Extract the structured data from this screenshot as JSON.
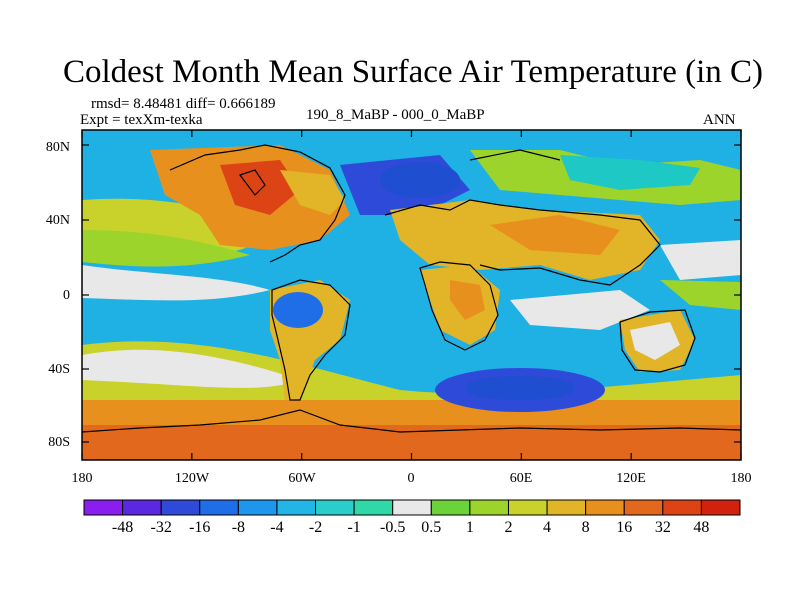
{
  "title": "Coldest Month Mean Surface Air Temperature (in C)",
  "stats": "rmsd= 8.48481 diff= 0.666189",
  "experiment": "Expt = texXm-texka",
  "period": "190_8_MaBP - 000_0_MaBP",
  "season": "ANN",
  "lat_labels": [
    "80N",
    "40N",
    "0",
    "40S",
    "80S"
  ],
  "lon_labels": [
    "180",
    "120W",
    "60W",
    "0",
    "60E",
    "120E",
    "180"
  ],
  "colorbar": {
    "labels": [
      "-48",
      "-32",
      "-16",
      "-8",
      "-4",
      "-2",
      "-1",
      "-0.5",
      "0.5",
      "1",
      "2",
      "4",
      "8",
      "16",
      "32",
      "48"
    ],
    "colors": [
      "#8a1ef0",
      "#5a28e0",
      "#2e4ad8",
      "#1f6ee8",
      "#1e96ec",
      "#22b6e6",
      "#2acccc",
      "#30d8a8",
      "#e8e8e8",
      "#6cd23a",
      "#9cd42c",
      "#c8d22a",
      "#e2b428",
      "#e8901e",
      "#e2681e",
      "#dc4416",
      "#d2220e"
    ]
  }
}
